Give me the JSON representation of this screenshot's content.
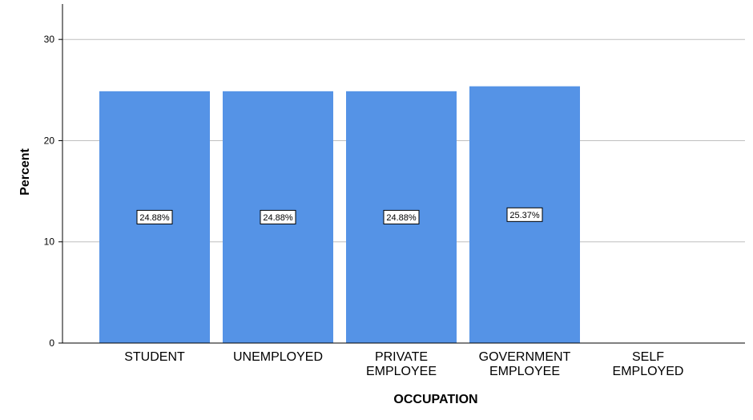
{
  "chart_data": {
    "type": "bar",
    "title": "",
    "xlabel": "OCCUPATION",
    "ylabel": "Percent",
    "categories": [
      [
        "STUDENT"
      ],
      [
        "UNEMPLOYED"
      ],
      [
        "PRIVATE",
        "EMPLOYEE"
      ],
      [
        "GOVERNMENT",
        "EMPLOYEE"
      ],
      [
        "SELF",
        "EMPLOYED"
      ]
    ],
    "values": [
      24.88,
      24.88,
      24.88,
      25.37,
      null
    ],
    "data_labels": [
      "24.88%",
      "24.88%",
      "24.88%",
      "25.37%",
      ""
    ],
    "yticks": [
      "0",
      "10",
      "20",
      "30"
    ],
    "ylim": [
      0,
      33.5
    ],
    "grid": true,
    "bar_color": "#5593e6",
    "grid_color": "#bfbfbf"
  }
}
